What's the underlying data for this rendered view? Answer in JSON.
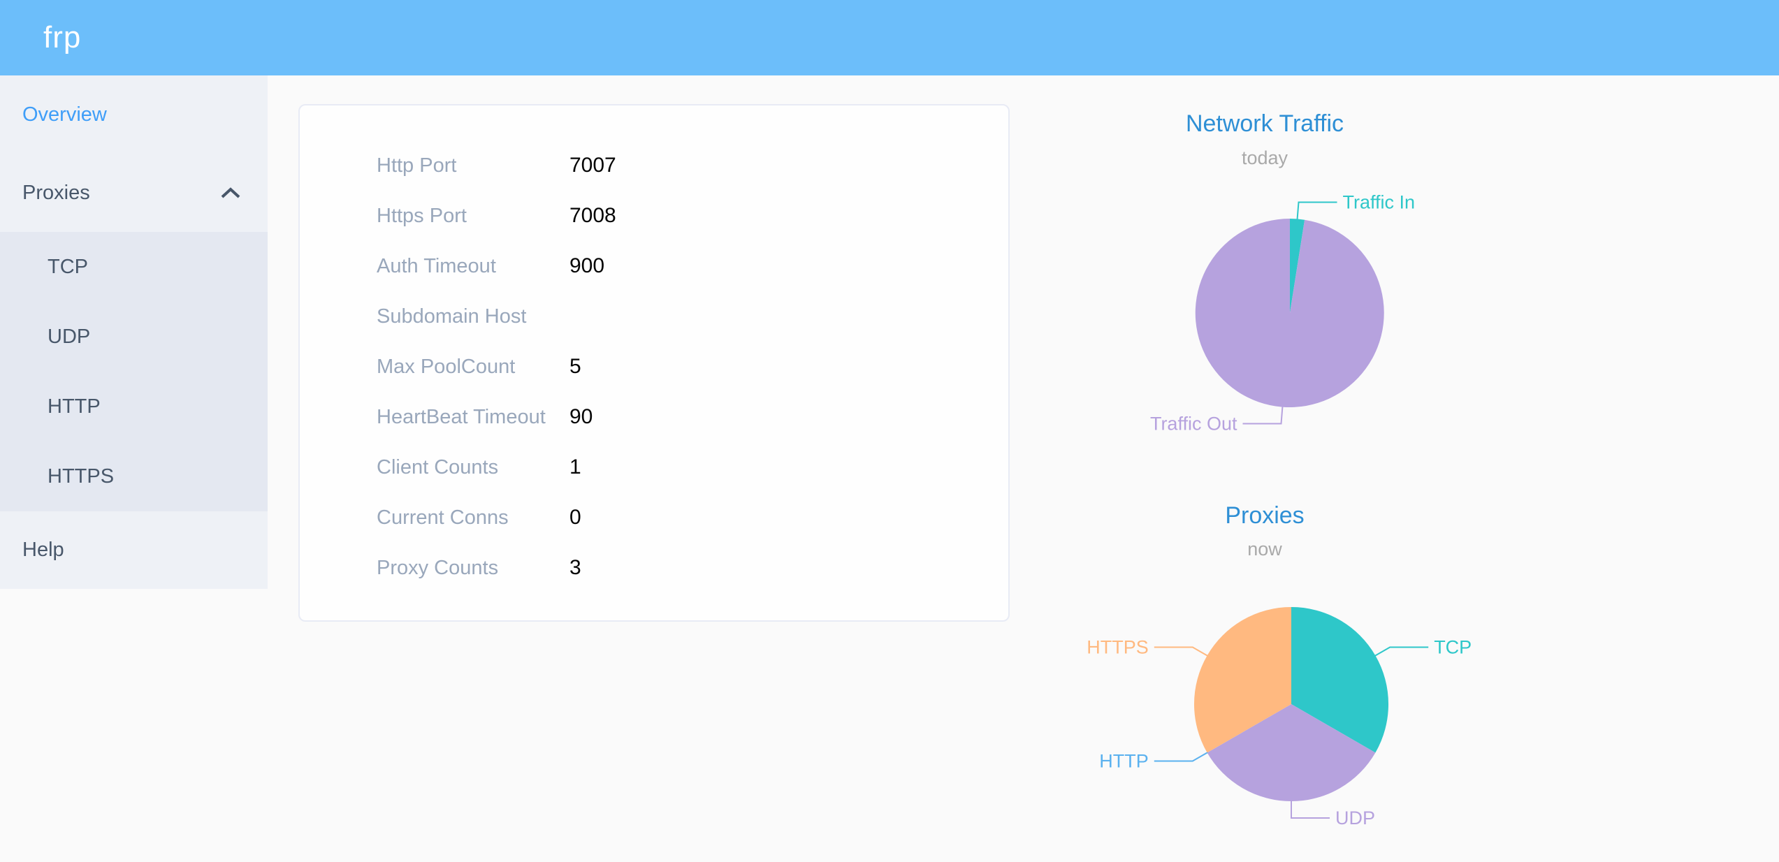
{
  "header": {
    "logo": "frp"
  },
  "colors": {
    "header_bg": "#6cbefa",
    "sidebar_bg": "#eef1f6",
    "submenu_bg": "#e4e8f1",
    "sidebar_text": "#48576a",
    "sidebar_active": "#3f9ef8",
    "chart_title_blue": "#2e8fd5",
    "card_label_gray": "#99a7bb"
  },
  "sidebar": {
    "overview": "Overview",
    "proxies": "Proxies",
    "proxies_children": [
      "TCP",
      "UDP",
      "HTTP",
      "HTTPS"
    ],
    "help": "Help"
  },
  "overview_card": {
    "rows": [
      {
        "label": "Http Port",
        "value": "7007"
      },
      {
        "label": "Https Port",
        "value": "7008"
      },
      {
        "label": "Auth Timeout",
        "value": "900"
      },
      {
        "label": "Subdomain Host",
        "value": ""
      },
      {
        "label": "Max PoolCount",
        "value": "5"
      },
      {
        "label": "HeartBeat Timeout",
        "value": "90"
      },
      {
        "label": "Client Counts",
        "value": "1"
      },
      {
        "label": "Current Conns",
        "value": "0"
      },
      {
        "label": "Proxy Counts",
        "value": "3"
      }
    ]
  },
  "chart_data": [
    {
      "type": "pie",
      "title": "Network Traffic",
      "subtitle": "today",
      "labels": [
        "Traffic In",
        "Traffic Out"
      ],
      "values": [
        2.5,
        97.5
      ],
      "values_note": "shares estimated from arc angles; exact byte counts not displayed",
      "colors": [
        "#2ec7c9",
        "#b6a2de"
      ],
      "legend_position": "callout-labels"
    },
    {
      "type": "pie",
      "title": "Proxies",
      "subtitle": "now",
      "labels": [
        "TCP",
        "UDP",
        "HTTP",
        "HTTPS"
      ],
      "values": [
        1,
        1,
        0,
        1
      ],
      "values_note": "counts; total matches Proxy Counts = 3, HTTP slice is zero",
      "colors": [
        "#2ec7c9",
        "#b6a2de",
        "#5ab1ef",
        "#ffb980"
      ],
      "legend_position": "callout-labels"
    }
  ]
}
